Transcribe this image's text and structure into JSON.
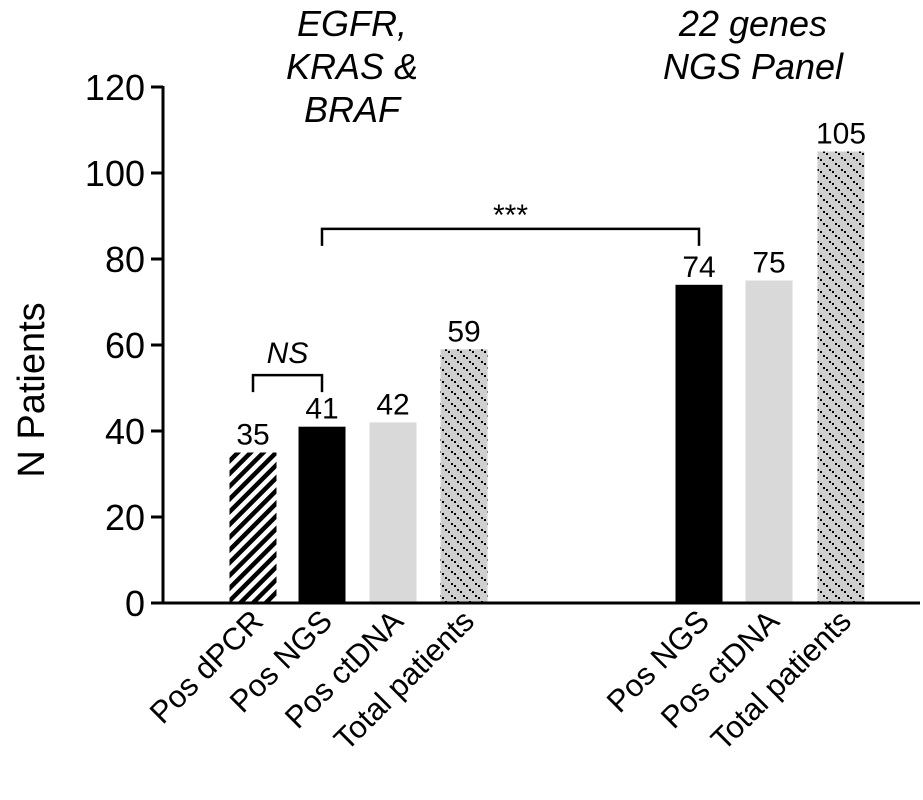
{
  "chart_data": {
    "type": "bar",
    "ylabel": "N Patients",
    "ylim": [
      0,
      120
    ],
    "yticks": [
      0,
      20,
      40,
      60,
      80,
      100,
      120
    ],
    "groups": [
      {
        "title_lines": [
          "EGFR,",
          "KRAS &",
          "BRAF"
        ],
        "bars": [
          {
            "category": "Pos dPCR",
            "value": 35,
            "fill": "hatch"
          },
          {
            "category": "Pos NGS",
            "value": 41,
            "fill": "#000000"
          },
          {
            "category": "Pos ctDNA",
            "value": 42,
            "fill": "#d9d9d9"
          },
          {
            "category": "Total patients",
            "value": 59,
            "fill": "dots"
          }
        ]
      },
      {
        "title_lines": [
          "22 genes",
          "NGS Panel"
        ],
        "bars": [
          {
            "category": "Pos NGS",
            "value": 74,
            "fill": "#000000"
          },
          {
            "category": "Pos ctDNA",
            "value": 75,
            "fill": "#d9d9d9"
          },
          {
            "category": "Total patients",
            "value": 105,
            "fill": "dots"
          }
        ]
      }
    ],
    "annotations": [
      {
        "label": "NS",
        "italic": true,
        "from": [
          0,
          0
        ],
        "to": [
          0,
          1
        ],
        "y": 53
      },
      {
        "label": "***",
        "italic": false,
        "from": [
          0,
          1
        ],
        "to": [
          1,
          0
        ],
        "y": 87
      }
    ]
  }
}
